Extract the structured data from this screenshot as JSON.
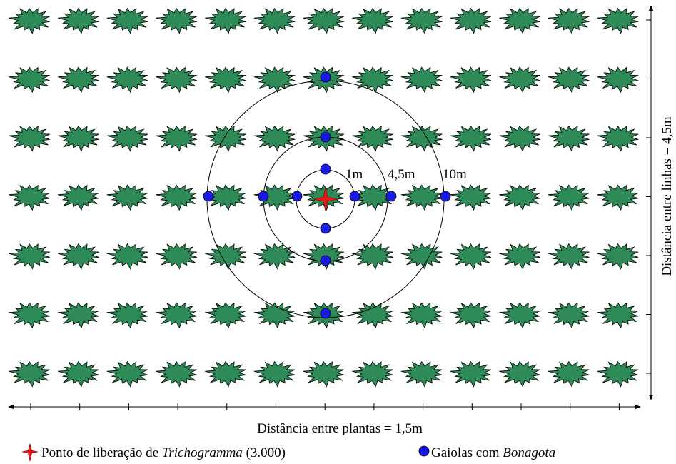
{
  "labels": {
    "inner": "1m",
    "middle": "4,5m",
    "outer": "10m"
  },
  "axes": {
    "x_label": "Distância entre plantas = 1,5m",
    "y_label": "Distância entre linhas = 4,5m"
  },
  "legend": {
    "release": {
      "text": "Ponto de liberação de ",
      "italic": "Trichogramma",
      "suffix": " (3.000)"
    },
    "cages": {
      "text": "Gaiolas com ",
      "italic": "Bonagota"
    }
  }
}
